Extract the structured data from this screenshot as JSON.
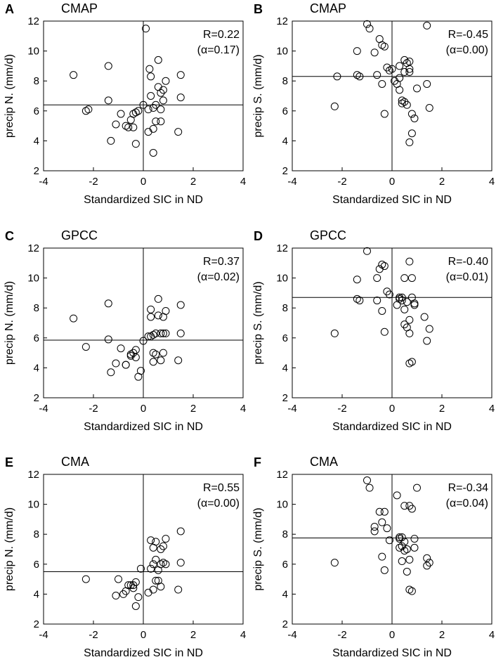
{
  "figure": {
    "alt": "Scatter plots of precipitation versus standardized SIC in ND"
  },
  "chart_data": [
    {
      "type": "scatter",
      "letter": "A",
      "title": "CMAP",
      "xlabel": "Standardized SIC in ND",
      "ylabel": "precip N. (mm/d)",
      "xlim": [
        -4,
        4
      ],
      "ylim": [
        2,
        12
      ],
      "xticks": [
        "-4",
        "-2",
        "0",
        "2",
        "4"
      ],
      "yticks": [
        "2",
        "4",
        "6",
        "8",
        "10",
        "12"
      ],
      "r_text": "R=0.22",
      "alpha_text": "(α=0.17)",
      "ref_x": 0,
      "ref_y": 6.4,
      "x": [
        -2.8,
        -2.3,
        -2.2,
        -1.4,
        -1.4,
        -1.3,
        -1.1,
        -0.9,
        -0.7,
        -0.6,
        -0.5,
        -0.4,
        -0.4,
        -0.3,
        -0.3,
        -0.2,
        0.0,
        0.1,
        0.2,
        0.2,
        0.25,
        0.3,
        0.3,
        0.4,
        0.4,
        0.4,
        0.5,
        0.5,
        0.6,
        0.6,
        0.7,
        0.7,
        0.7,
        0.8,
        0.8,
        0.9,
        1.4,
        1.5,
        1.5
      ],
      "y": [
        8.4,
        6.0,
        6.1,
        9.0,
        6.7,
        4.0,
        5.1,
        5.8,
        5.0,
        4.9,
        5.4,
        5.8,
        4.9,
        5.9,
        3.8,
        6.0,
        6.4,
        11.5,
        4.6,
        6.1,
        8.8,
        7.0,
        8.3,
        6.2,
        4.8,
        3.2,
        6.4,
        5.3,
        9.4,
        7.6,
        7.2,
        5.3,
        6.1,
        7.4,
        6.7,
        8.0,
        4.6,
        8.4,
        6.9
      ]
    },
    {
      "type": "scatter",
      "letter": "B",
      "title": "CMAP",
      "xlabel": "Standardized SIC in ND",
      "ylabel": "precip S. (mm/d)",
      "xlim": [
        -4,
        4
      ],
      "ylim": [
        2,
        12
      ],
      "xticks": [
        "-4",
        "-2",
        "0",
        "2",
        "4"
      ],
      "yticks": [
        "2",
        "4",
        "6",
        "8",
        "10",
        "12"
      ],
      "r_text": "R=-0.45",
      "alpha_text": "(α=0.00)",
      "ref_x": 0,
      "ref_y": 8.3,
      "x": [
        -2.3,
        -2.2,
        -1.4,
        -1.4,
        -1.3,
        -1.0,
        -0.9,
        -0.7,
        -0.6,
        -0.5,
        -0.4,
        -0.4,
        -0.3,
        -0.3,
        -0.2,
        -0.1,
        0.0,
        0.1,
        0.2,
        0.3,
        0.3,
        0.3,
        0.4,
        0.4,
        0.5,
        0.5,
        0.5,
        0.6,
        0.6,
        0.7,
        0.7,
        0.7,
        0.7,
        0.8,
        0.8,
        0.9,
        1.0,
        1.4,
        1.4,
        1.5
      ],
      "y": [
        6.3,
        8.3,
        10.0,
        8.4,
        8.3,
        11.8,
        11.5,
        9.9,
        8.4,
        10.8,
        7.8,
        10.4,
        10.3,
        5.8,
        8.9,
        8.7,
        8.8,
        8.0,
        7.8,
        7.4,
        8.2,
        9.0,
        6.7,
        6.5,
        6.6,
        9.4,
        8.6,
        6.4,
        9.2,
        9.3,
        8.6,
        8.8,
        3.9,
        5.8,
        4.5,
        5.5,
        7.5,
        7.8,
        11.7,
        6.2
      ]
    },
    {
      "type": "scatter",
      "letter": "C",
      "title": "GPCC",
      "xlabel": "Standardized SIC in ND",
      "ylabel": "precip N. (mm/d)",
      "xlim": [
        -4,
        4
      ],
      "ylim": [
        2,
        12
      ],
      "xticks": [
        "-4",
        "-2",
        "0",
        "2",
        "4"
      ],
      "yticks": [
        "2",
        "4",
        "6",
        "8",
        "10",
        "12"
      ],
      "r_text": "R=0.37",
      "alpha_text": "(α=0.02)",
      "ref_x": 0,
      "ref_y": 5.85,
      "x": [
        -2.8,
        -2.3,
        -1.4,
        -1.4,
        -1.3,
        -1.1,
        -0.9,
        -0.7,
        -0.7,
        -0.5,
        -0.5,
        -0.4,
        -0.3,
        -0.3,
        -0.2,
        -0.1,
        0.0,
        0.2,
        0.3,
        0.3,
        0.3,
        0.4,
        0.4,
        0.4,
        0.5,
        0.5,
        0.6,
        0.6,
        0.7,
        0.7,
        0.8,
        0.8,
        0.8,
        0.9,
        0.9,
        1.4,
        1.5,
        1.5
      ],
      "y": [
        7.3,
        5.4,
        8.3,
        5.9,
        3.7,
        4.3,
        5.3,
        4.2,
        4.2,
        4.8,
        4.9,
        5.0,
        4.7,
        5.2,
        3.4,
        3.8,
        5.8,
        6.1,
        7.9,
        6.1,
        7.4,
        6.2,
        5.0,
        4.4,
        4.9,
        6.3,
        8.6,
        7.5,
        6.3,
        4.5,
        7.4,
        6.3,
        5.0,
        7.8,
        6.3,
        4.5,
        8.2,
        6.3
      ]
    },
    {
      "type": "scatter",
      "letter": "D",
      "title": "GPCC",
      "xlabel": "Standardized SIC in ND",
      "ylabel": "precip S. (mm/d)",
      "xlim": [
        -4,
        4
      ],
      "ylim": [
        2,
        12
      ],
      "xticks": [
        "-4",
        "-2",
        "0",
        "2",
        "4"
      ],
      "yticks": [
        "2",
        "4",
        "6",
        "8",
        "10",
        "12"
      ],
      "r_text": "R=-0.40",
      "alpha_text": "(α=0.01)",
      "ref_x": 0,
      "ref_y": 8.7,
      "x": [
        -2.3,
        -1.4,
        -1.4,
        -1.3,
        -1.0,
        -0.6,
        -0.6,
        -0.5,
        -0.4,
        -0.4,
        -0.3,
        -0.3,
        -0.2,
        -0.1,
        0.2,
        0.3,
        0.3,
        0.4,
        0.4,
        0.5,
        0.5,
        0.5,
        0.6,
        0.6,
        0.7,
        0.7,
        0.7,
        0.7,
        0.8,
        0.8,
        0.8,
        0.9,
        0.9,
        1.3,
        1.4,
        1.5
      ],
      "y": [
        6.3,
        8.6,
        9.9,
        8.5,
        11.8,
        10.0,
        8.5,
        10.6,
        7.8,
        10.9,
        10.8,
        6.4,
        9.1,
        8.9,
        8.2,
        8.6,
        8.7,
        8.7,
        8.5,
        6.9,
        7.9,
        10.0,
        6.7,
        8.4,
        7.2,
        11.1,
        4.3,
        6.3,
        10.0,
        8.7,
        4.4,
        8.2,
        8.3,
        7.4,
        5.8,
        6.6
      ]
    },
    {
      "type": "scatter",
      "letter": "E",
      "title": "CMA",
      "xlabel": "Standardized SIC in ND",
      "ylabel": "precip N. (mm/d)",
      "xlim": [
        -4,
        4
      ],
      "ylim": [
        2,
        12
      ],
      "xticks": [
        "-4",
        "-2",
        "0",
        "2",
        "4"
      ],
      "yticks": [
        "2",
        "4",
        "6",
        "8",
        "10",
        "12"
      ],
      "r_text": "R=0.55",
      "alpha_text": "(α=0.00)",
      "ref_x": 0,
      "ref_y": 5.5,
      "x": [
        -2.3,
        -1.1,
        -1.0,
        -0.8,
        -0.7,
        -0.6,
        -0.5,
        -0.4,
        -0.4,
        -0.3,
        -0.3,
        -0.2,
        -0.1,
        0.2,
        0.3,
        0.3,
        0.4,
        0.4,
        0.4,
        0.5,
        0.5,
        0.5,
        0.6,
        0.6,
        0.7,
        0.7,
        0.7,
        0.8,
        0.8,
        0.9,
        0.9,
        1.4,
        1.5,
        1.5
      ],
      "y": [
        5.0,
        3.9,
        5.0,
        4.0,
        4.2,
        4.6,
        4.6,
        4.4,
        4.6,
        4.8,
        3.2,
        3.8,
        5.7,
        4.1,
        7.6,
        5.7,
        7.1,
        6.0,
        4.3,
        7.5,
        6.3,
        4.9,
        4.9,
        5.6,
        7.0,
        6.0,
        4.5,
        7.2,
        6.1,
        7.7,
        6.0,
        4.3,
        8.2,
        6.1
      ]
    },
    {
      "type": "scatter",
      "letter": "F",
      "title": "CMA",
      "xlabel": "Standardized SIC in ND",
      "ylabel": "precip S. (mm/d)",
      "xlim": [
        -4,
        4
      ],
      "ylim": [
        2,
        12
      ],
      "xticks": [
        "-4",
        "-2",
        "0",
        "2",
        "4"
      ],
      "yticks": [
        "2",
        "4",
        "6",
        "8",
        "10",
        "12"
      ],
      "r_text": "R=-0.34",
      "alpha_text": "(α=0.04)",
      "ref_x": 0,
      "ref_y": 7.75,
      "x": [
        -2.3,
        -1.0,
        -0.9,
        -0.7,
        -0.7,
        -0.5,
        -0.4,
        -0.4,
        -0.3,
        -0.3,
        -0.2,
        -0.1,
        0.2,
        0.3,
        0.3,
        0.3,
        0.4,
        0.4,
        0.4,
        0.5,
        0.5,
        0.5,
        0.6,
        0.6,
        0.7,
        0.7,
        0.7,
        0.8,
        0.8,
        0.9,
        0.9,
        1.0,
        1.4,
        1.4,
        1.5
      ],
      "y": [
        6.1,
        11.6,
        11.1,
        8.5,
        8.2,
        9.5,
        6.5,
        8.8,
        9.5,
        5.6,
        8.4,
        7.6,
        10.6,
        7.1,
        7.7,
        7.8,
        7.2,
        7.8,
        6.2,
        9.9,
        6.9,
        7.5,
        7.0,
        5.5,
        9.9,
        6.3,
        4.3,
        9.7,
        4.2,
        7.7,
        7.1,
        11.1,
        6.4,
        5.9,
        6.1
      ]
    }
  ]
}
